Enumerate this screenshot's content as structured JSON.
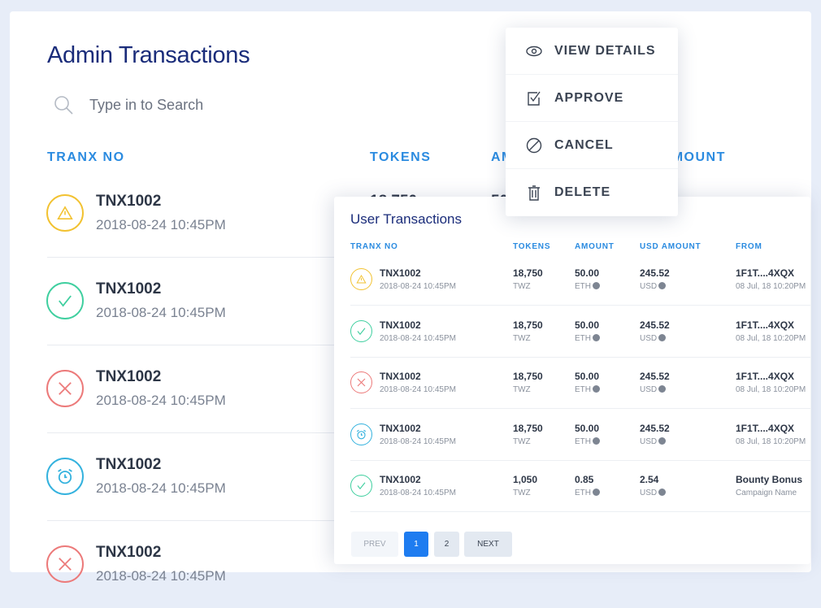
{
  "admin": {
    "title": "Admin Transactions",
    "search_placeholder": "Type in to Search",
    "headers": {
      "tranx": "TRANX NO",
      "tokens": "TOKENS",
      "amount": "AMOUNT",
      "usd": "USD AMOUNT"
    },
    "rows": [
      {
        "id": "TNX1002",
        "date": "2018-08-24 10:45PM",
        "status": "warning",
        "tokens": "18,750",
        "amount": "50.00"
      },
      {
        "id": "TNX1002",
        "date": "2018-08-24 10:45PM",
        "status": "success"
      },
      {
        "id": "TNX1002",
        "date": "2018-08-24 10:45PM",
        "status": "cancelled"
      },
      {
        "id": "TNX1002",
        "date": "2018-08-24 10:45PM",
        "status": "pending"
      },
      {
        "id": "TNX1002",
        "date": "2018-08-24 10:45PM",
        "status": "cancelled"
      }
    ]
  },
  "menu": {
    "items": [
      {
        "label": "VIEW DETAILS",
        "icon": "eye-icon"
      },
      {
        "label": "APPROVE",
        "icon": "checkbox-icon"
      },
      {
        "label": "CANCEL",
        "icon": "ban-icon"
      },
      {
        "label": "DELETE",
        "icon": "trash-icon"
      }
    ]
  },
  "user": {
    "title": "User Transactions",
    "headers": {
      "tranx": "TRANX NO",
      "tokens": "TOKENS",
      "amount": "AMOUNT",
      "usd": "USD AMOUNT",
      "from": "FROM"
    },
    "rows": [
      {
        "id": "TNX1002",
        "date": "2018-08-24 10:45PM",
        "status": "warning",
        "tokens": "18,750",
        "token_unit": "TWZ",
        "amount": "50.00",
        "amount_unit": "ETH",
        "usd": "245.52",
        "usd_unit": "USD",
        "from": "1F1T....4XQX",
        "from_sub": "08 Jul, 18 10:20PM"
      },
      {
        "id": "TNX1002",
        "date": "2018-08-24 10:45PM",
        "status": "success",
        "tokens": "18,750",
        "token_unit": "TWZ",
        "amount": "50.00",
        "amount_unit": "ETH",
        "usd": "245.52",
        "usd_unit": "USD",
        "from": "1F1T....4XQX",
        "from_sub": "08 Jul, 18 10:20PM"
      },
      {
        "id": "TNX1002",
        "date": "2018-08-24 10:45PM",
        "status": "cancelled",
        "tokens": "18,750",
        "token_unit": "TWZ",
        "amount": "50.00",
        "amount_unit": "ETH",
        "usd": "245.52",
        "usd_unit": "USD",
        "from": "1F1T....4XQX",
        "from_sub": "08 Jul, 18 10:20PM"
      },
      {
        "id": "TNX1002",
        "date": "2018-08-24 10:45PM",
        "status": "pending",
        "tokens": "18,750",
        "token_unit": "TWZ",
        "amount": "50.00",
        "amount_unit": "ETH",
        "usd": "245.52",
        "usd_unit": "USD",
        "from": "1F1T....4XQX",
        "from_sub": "08 Jul, 18 10:20PM"
      },
      {
        "id": "TNX1002",
        "date": "2018-08-24 10:45PM",
        "status": "success",
        "tokens": "1,050",
        "token_unit": "TWZ",
        "amount": "0.85",
        "amount_unit": "ETH",
        "usd": "2.54",
        "usd_unit": "USD",
        "from": "Bounty Bonus",
        "from_sub": "Campaign Name"
      }
    ],
    "pagination": {
      "prev": "PREV",
      "pages": [
        "1",
        "2"
      ],
      "current": "1",
      "next": "NEXT"
    }
  },
  "colors": {
    "warning": "#f2c231",
    "success": "#3fcf9f",
    "cancelled": "#ec7a7a",
    "pending": "#34b2de",
    "accent": "#2b8be0",
    "title": "#1a2c7a",
    "active_page": "#1e7cf0"
  }
}
